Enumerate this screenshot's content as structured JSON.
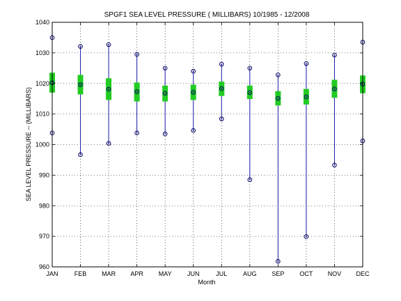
{
  "chart_data": {
    "type": "range-boxplot",
    "title": "SPGF1  SEA LEVEL PRESSURE ( MILLIBARS) 10/1985 - 12/2008",
    "xlabel": "Month",
    "ylabel": "SEA LEVEL PRESSURE -- (MILLIBARS)",
    "ylim": [
      960,
      1040
    ],
    "yticks": [
      960,
      970,
      980,
      990,
      1000,
      1010,
      1020,
      1030,
      1040
    ],
    "grid": true,
    "categories": [
      "JAN",
      "FEB",
      "MAR",
      "APR",
      "MAY",
      "JUN",
      "JUL",
      "AUG",
      "SEP",
      "OCT",
      "NOV",
      "DEC"
    ],
    "max": [
      1035.0,
      1032.1,
      1032.7,
      1029.5,
      1025.0,
      1024.0,
      1026.3,
      1025.0,
      1022.8,
      1026.5,
      1029.3,
      1033.5
    ],
    "mean": [
      1020.2,
      1019.6,
      1018.1,
      1017.3,
      1016.8,
      1017.1,
      1018.3,
      1017.0,
      1015.1,
      1015.6,
      1018.2,
      1019.8
    ],
    "min": [
      1003.8,
      996.7,
      1000.4,
      1003.8,
      1003.5,
      1004.6,
      1008.4,
      988.5,
      961.8,
      969.9,
      993.3,
      1001.2
    ],
    "q_high": [
      1023.5,
      1022.8,
      1021.7,
      1020.3,
      1019.3,
      1019.6,
      1020.6,
      1019.3,
      1017.5,
      1018.2,
      1021.2,
      1022.6
    ],
    "q_low": [
      1017.0,
      1016.4,
      1014.6,
      1014.1,
      1014.1,
      1014.6,
      1015.9,
      1014.9,
      1012.8,
      1013.1,
      1015.3,
      1016.8
    ],
    "colors": {
      "range_line": "#1a1aa6",
      "box": "#22cc22",
      "marker": "#000066",
      "grid": "#000000"
    }
  }
}
